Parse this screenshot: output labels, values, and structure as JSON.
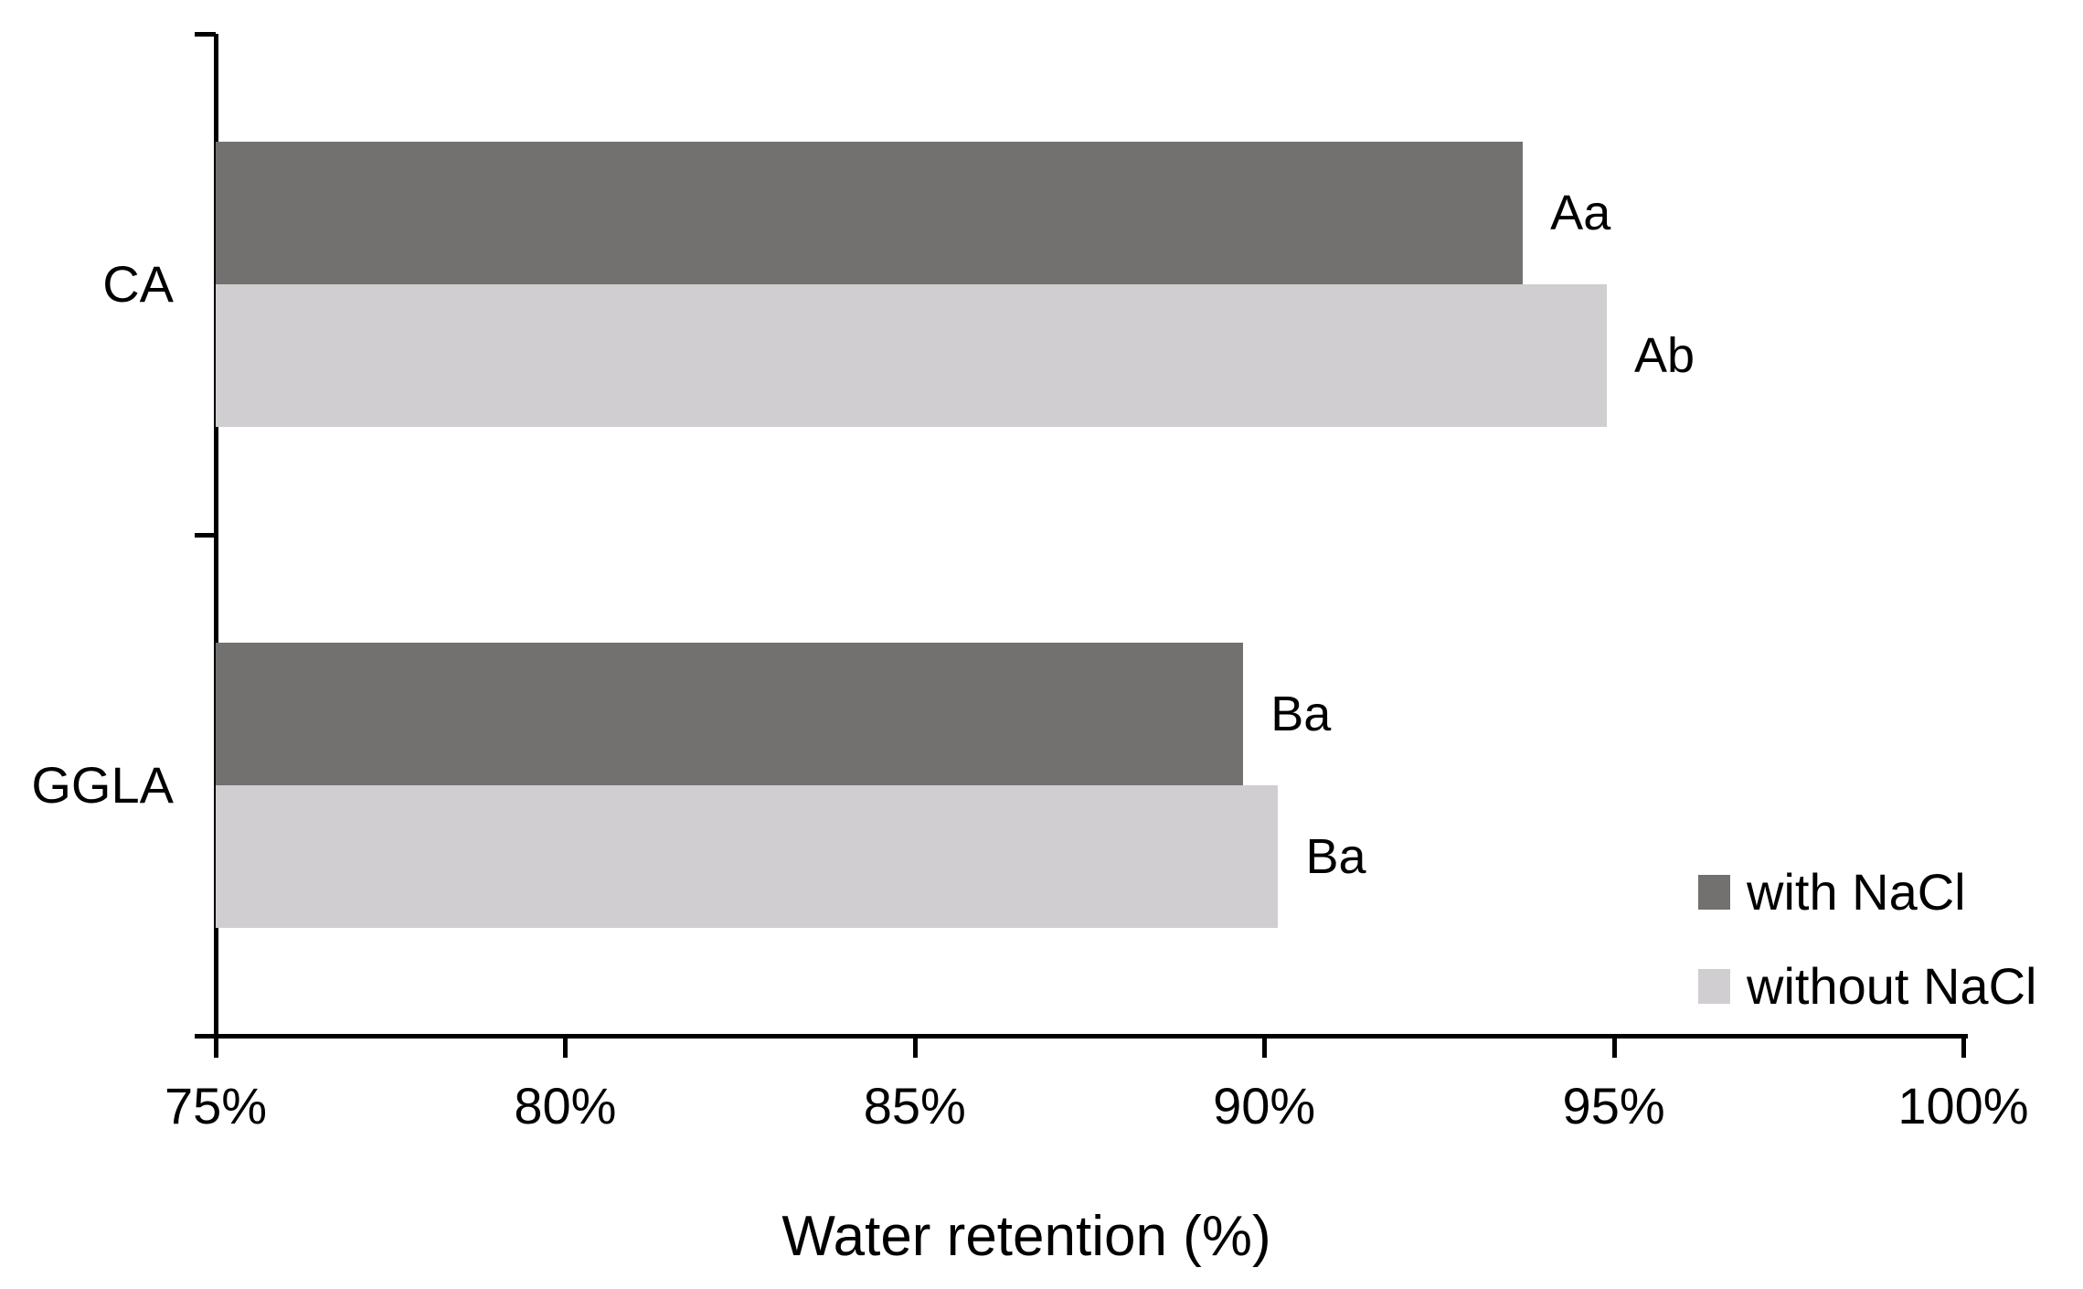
{
  "chart_data": {
    "type": "bar",
    "orientation": "horizontal",
    "title": "",
    "xlabel": "Water retention (%)",
    "ylabel": "",
    "categories": [
      "CA",
      "GGLA"
    ],
    "series": [
      {
        "name": "with NaCl",
        "color": "#737070",
        "values": [
          93.7,
          89.7
        ],
        "point_labels": [
          "Aa",
          "Ba"
        ]
      },
      {
        "name": "without NaCl",
        "color": "#d0ced0",
        "values": [
          94.9,
          90.2
        ],
        "point_labels": [
          "Ab",
          "Ba"
        ]
      }
    ],
    "xlim": [
      75,
      100
    ],
    "x_tick_values": [
      75,
      80,
      85,
      90,
      95,
      100
    ],
    "x_ticks": [
      "75%",
      "80%",
      "85%",
      "90%",
      "95%",
      "100%"
    ],
    "grid": false,
    "legend_position": "bottom-right",
    "axis_color": "#000000",
    "background": "#ffffff"
  }
}
